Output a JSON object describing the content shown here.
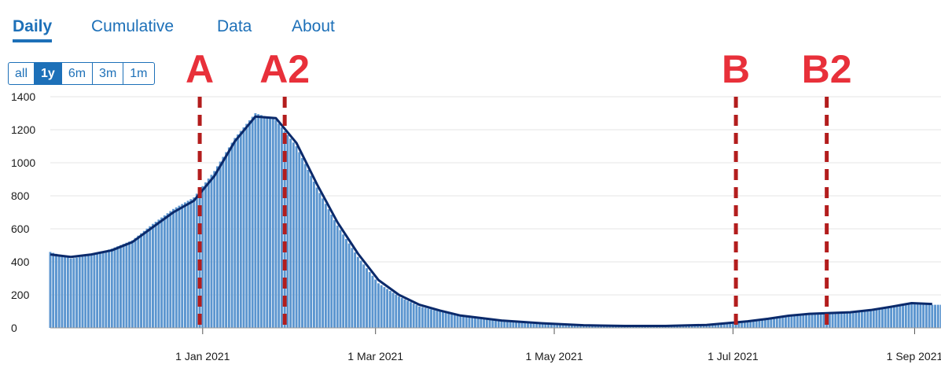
{
  "tabs": [
    {
      "label": "Daily",
      "active": true
    },
    {
      "label": "Cumulative",
      "active": false
    },
    {
      "label": "Data",
      "active": false
    },
    {
      "label": "About",
      "active": false
    }
  ],
  "range_buttons": [
    {
      "label": "all",
      "selected": false
    },
    {
      "label": "1y",
      "selected": true
    },
    {
      "label": "6m",
      "selected": false
    },
    {
      "label": "3m",
      "selected": false
    },
    {
      "label": "1m",
      "selected": false
    }
  ],
  "colors": {
    "bars": "#5b95cf",
    "line": "#0b2a6b",
    "annotation": "#b31d1d",
    "accent": "#1d70b8"
  },
  "chart_data": {
    "type": "bar",
    "x_axis": {
      "start_date": "2020-11-10",
      "end_date": "2021-09-10",
      "ticks": [
        {
          "date": "2021-01-01",
          "label": "1 Jan 2021"
        },
        {
          "date": "2021-03-01",
          "label": "1 Mar 2021"
        },
        {
          "date": "2021-05-01",
          "label": "1 May 2021"
        },
        {
          "date": "2021-07-01",
          "label": "1 Jul 2021"
        },
        {
          "date": "2021-09-01",
          "label": "1 Sep 2021"
        }
      ]
    },
    "ylim": [
      0,
      1400
    ],
    "yticks": [
      0,
      200,
      400,
      600,
      800,
      1000,
      1200,
      1400
    ],
    "grid": true,
    "series": [
      {
        "type": "bar",
        "x": [
          "2020-11-10",
          "2020-11-17",
          "2020-11-24",
          "2020-12-01",
          "2020-12-08",
          "2020-12-15",
          "2020-12-22",
          "2020-12-29",
          "2021-01-05",
          "2021-01-12",
          "2021-01-19",
          "2021-01-26",
          "2021-02-02",
          "2021-02-09",
          "2021-02-16",
          "2021-02-23",
          "2021-03-02",
          "2021-03-09",
          "2021-03-16",
          "2021-03-23",
          "2021-03-30",
          "2021-04-13",
          "2021-04-27",
          "2021-05-11",
          "2021-05-25",
          "2021-06-08",
          "2021-06-22",
          "2021-07-06",
          "2021-07-13",
          "2021-07-20",
          "2021-07-27",
          "2021-08-03",
          "2021-08-10",
          "2021-08-17",
          "2021-08-24",
          "2021-08-31",
          "2021-09-07"
        ],
        "y": [
          460,
          420,
          440,
          480,
          530,
          630,
          720,
          790,
          950,
          1150,
          1300,
          1260,
          1100,
          850,
          620,
          430,
          270,
          190,
          130,
          100,
          70,
          40,
          25,
          15,
          12,
          12,
          18,
          40,
          55,
          75,
          85,
          90,
          95,
          110,
          130,
          150,
          140
        ]
      },
      {
        "type": "line",
        "x": [
          "2020-11-10",
          "2020-11-17",
          "2020-11-24",
          "2020-12-01",
          "2020-12-08",
          "2020-12-15",
          "2020-12-22",
          "2020-12-29",
          "2021-01-05",
          "2021-01-12",
          "2021-01-19",
          "2021-01-26",
          "2021-02-02",
          "2021-02-09",
          "2021-02-16",
          "2021-02-23",
          "2021-03-02",
          "2021-03-09",
          "2021-03-16",
          "2021-03-23",
          "2021-03-30",
          "2021-04-13",
          "2021-04-27",
          "2021-05-11",
          "2021-05-25",
          "2021-06-08",
          "2021-06-22",
          "2021-07-06",
          "2021-07-13",
          "2021-07-20",
          "2021-07-27",
          "2021-08-03",
          "2021-08-10",
          "2021-08-17",
          "2021-08-24",
          "2021-08-31",
          "2021-09-07"
        ],
        "y": [
          445,
          430,
          445,
          470,
          520,
          610,
          700,
          770,
          920,
          1130,
          1280,
          1270,
          1120,
          870,
          640,
          450,
          290,
          200,
          140,
          105,
          75,
          45,
          28,
          16,
          12,
          12,
          18,
          40,
          55,
          74,
          85,
          90,
          95,
          108,
          128,
          150,
          145
        ]
      }
    ],
    "annotations": [
      {
        "label": "A",
        "date": "2020-12-31"
      },
      {
        "label": "A2",
        "date": "2021-01-29"
      },
      {
        "label": "B",
        "date": "2021-07-02"
      },
      {
        "label": "B2",
        "date": "2021-08-02"
      }
    ]
  }
}
